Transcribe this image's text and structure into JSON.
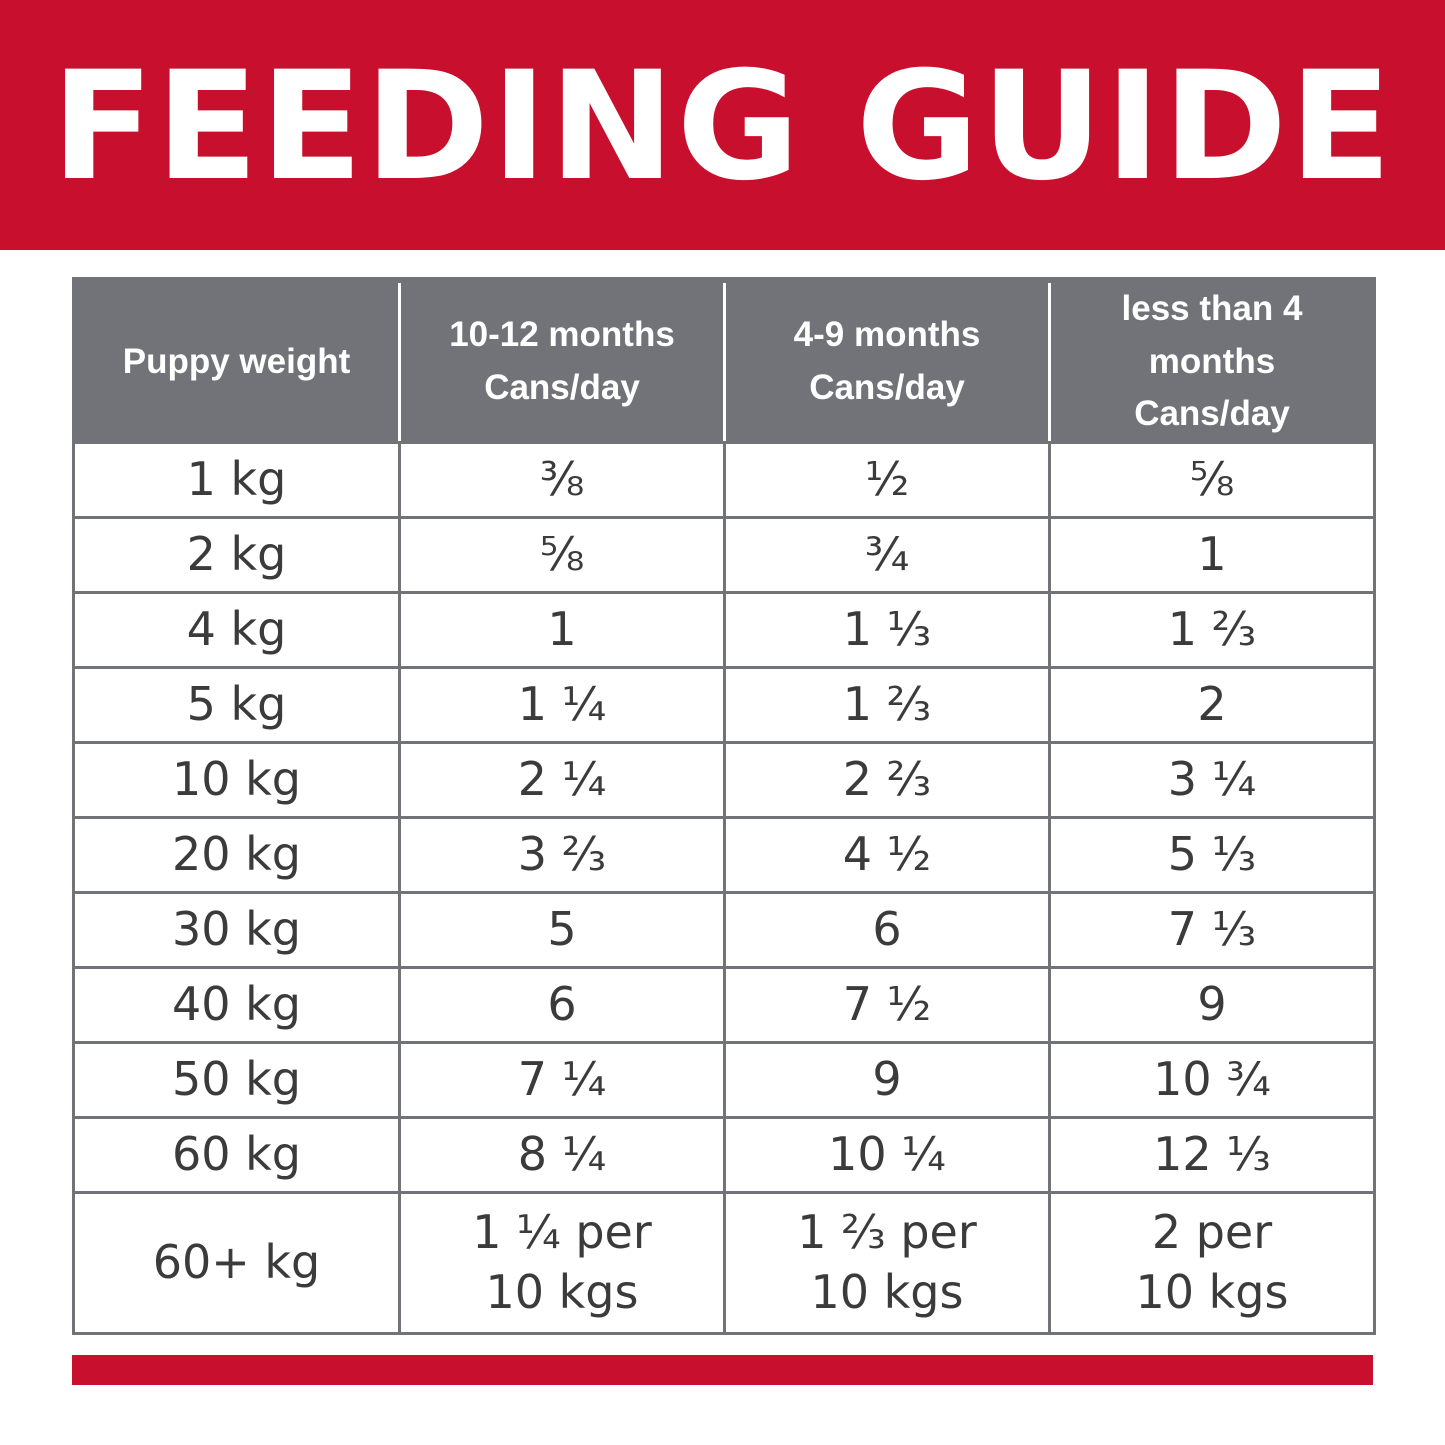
{
  "banner": {
    "title": "FEEDING GUIDE",
    "color": "#c8102e"
  },
  "table": {
    "header_color": "#727378",
    "headers": [
      {
        "line1": "Puppy weight",
        "line2": ""
      },
      {
        "line1": "10-12 months",
        "line2": "Cans/day"
      },
      {
        "line1": "4-9 months",
        "line2": "Cans/day"
      },
      {
        "line1": "less than 4 months",
        "line2": "Cans/day"
      }
    ],
    "rows": [
      {
        "weight": "1 kg",
        "m10_12": "⅜",
        "m4_9": "½",
        "lt4": "⅝"
      },
      {
        "weight": "2 kg",
        "m10_12": "⅝",
        "m4_9": "¾",
        "lt4": "1"
      },
      {
        "weight": "4 kg",
        "m10_12": "1",
        "m4_9": "1 ⅓",
        "lt4": "1 ⅔"
      },
      {
        "weight": "5 kg",
        "m10_12": "1 ¼",
        "m4_9": "1 ⅔",
        "lt4": "2"
      },
      {
        "weight": "10 kg",
        "m10_12": "2 ¼",
        "m4_9": "2 ⅔",
        "lt4": "3 ¼"
      },
      {
        "weight": "20 kg",
        "m10_12": "3 ⅔",
        "m4_9": "4 ½",
        "lt4": "5 ⅓"
      },
      {
        "weight": "30 kg",
        "m10_12": "5",
        "m4_9": "6",
        "lt4": "7 ⅓"
      },
      {
        "weight": "40 kg",
        "m10_12": "6",
        "m4_9": "7 ½",
        "lt4": "9"
      },
      {
        "weight": "50 kg",
        "m10_12": "7 ¼",
        "m4_9": "9",
        "lt4": "10 ¾"
      },
      {
        "weight": "60 kg",
        "m10_12": "8 ¼",
        "m4_9": "10 ¼",
        "lt4": "12 ⅓"
      }
    ],
    "last_row": {
      "weight": "60+ kg",
      "m10_12": {
        "line1": "1 ¼ per",
        "line2": "10 kgs"
      },
      "m4_9": {
        "line1": "1 ⅔ per",
        "line2": "10 kgs"
      },
      "lt4": {
        "line1": "2 per",
        "line2": "10 kgs"
      }
    }
  }
}
